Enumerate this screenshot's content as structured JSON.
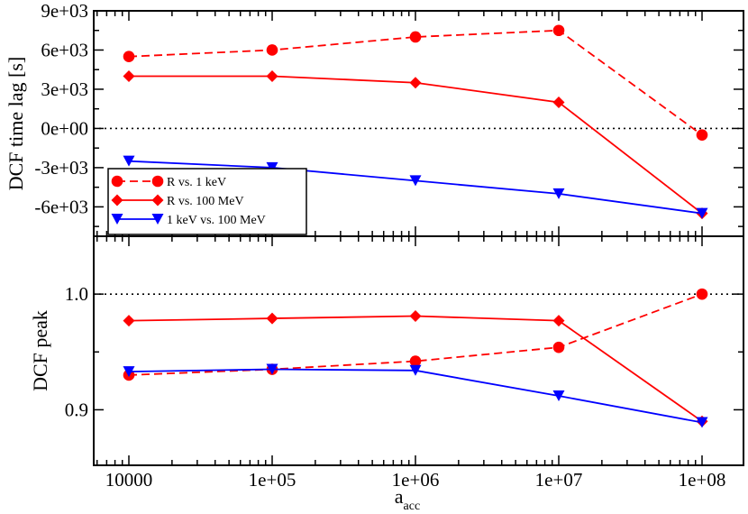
{
  "chart_data": {
    "type": "line",
    "x_scale": "log",
    "x": [
      10000,
      100000,
      1000000,
      10000000,
      100000000
    ],
    "x_tick_labels": [
      "10000",
      "1e+05",
      "1e+06",
      "1e+07",
      "1e+08"
    ],
    "xlabel_main": "a",
    "xlabel_sub": "acc",
    "panels": [
      {
        "id": "time_lag",
        "ylabel": "DCF time lag [s]",
        "ylim": [
          -8250,
          9000
        ],
        "y_ticks": [
          9000,
          6000,
          3000,
          0,
          -3000,
          -6000
        ],
        "y_tick_labels": [
          "9e+03",
          "6e+03",
          "3e+03",
          "0e+00",
          "-3e+03",
          "-6e+03"
        ],
        "reference_line": 0,
        "series": [
          {
            "name": "R vs. 1 keV",
            "color": "#ff0000",
            "marker": "circle",
            "dashed": true,
            "values": [
              5500,
              6000,
              7000,
              7500,
              -500
            ]
          },
          {
            "name": "R vs. 100 MeV",
            "color": "#ff0000",
            "marker": "diamond",
            "dashed": false,
            "values": [
              4000,
              4000,
              3500,
              2000,
              -6500
            ]
          },
          {
            "name": "1 keV vs. 100 MeV",
            "color": "#0000ff",
            "marker": "triangle-down",
            "dashed": false,
            "values": [
              -2500,
              -3000,
              -4000,
              -5000,
              -6500
            ]
          }
        ],
        "legend": {
          "position": "bottom-left",
          "entries": [
            "R vs. 1 keV",
            "R vs. 100 MeV",
            "1 keV vs. 100 MeV"
          ]
        }
      },
      {
        "id": "peak",
        "ylabel": "DCF peak",
        "ylim": [
          0.852,
          1.05
        ],
        "y_ticks": [
          1.0,
          0.9
        ],
        "y_tick_labels": [
          "1.0",
          "0.9"
        ],
        "reference_line": 1.0,
        "series": [
          {
            "name": "R vs. 1 keV",
            "color": "#ff0000",
            "marker": "circle",
            "dashed": true,
            "values": [
              0.93,
              0.935,
              0.942,
              0.954,
              1.0
            ]
          },
          {
            "name": "R vs. 100 MeV",
            "color": "#ff0000",
            "marker": "diamond",
            "dashed": false,
            "values": [
              0.977,
              0.979,
              0.981,
              0.977,
              0.89
            ]
          },
          {
            "name": "1 keV vs. 100 MeV",
            "color": "#0000ff",
            "marker": "triangle-down",
            "dashed": false,
            "values": [
              0.933,
              0.935,
              0.934,
              0.912,
              0.889
            ]
          }
        ]
      }
    ]
  }
}
